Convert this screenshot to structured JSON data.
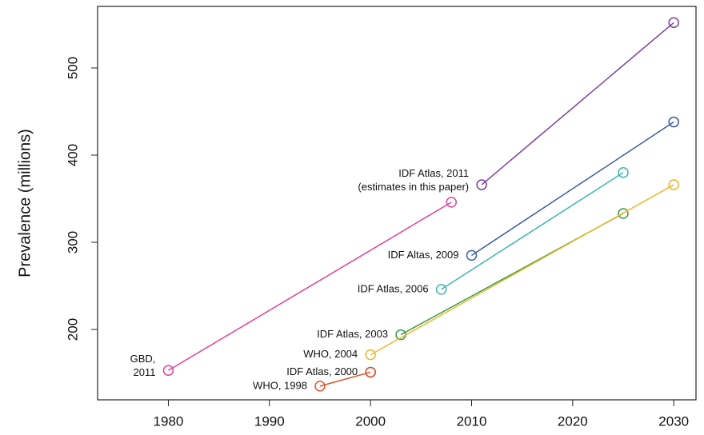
{
  "chart_data": {
    "type": "line",
    "y_label": "Prevalence (millions)",
    "xlim": [
      1973,
      2032.2
    ],
    "ylim": [
      119.3,
      570.6
    ],
    "xticks": [
      1980,
      1990,
      2000,
      2010,
      2020,
      2030
    ],
    "yticks": [
      200,
      300,
      400,
      500
    ],
    "grid": false,
    "series": [
      {
        "label": [
          "GBD,",
          "2011"
        ],
        "color": "#e0409b",
        "x": [
          1980,
          2008
        ],
        "values": [
          153,
          346
        ]
      },
      {
        "label": [
          "IDF Atlas, 2011",
          "(estimates in this paper)"
        ],
        "color": "#7b3fa0",
        "x": [
          2011,
          2030
        ],
        "values": [
          366,
          552
        ]
      },
      {
        "label": [
          "IDF Altas, 2009"
        ],
        "color": "#3c5aa8",
        "x": [
          2010,
          2030
        ],
        "values": [
          285,
          438
        ]
      },
      {
        "label": [
          "IDF Atlas, 2006"
        ],
        "color": "#3bb5b0",
        "x": [
          2007,
          2025
        ],
        "values": [
          246,
          380
        ]
      },
      {
        "label": [
          "IDF Atlas, 2003"
        ],
        "color": "#3a9d48",
        "x": [
          2003,
          2025
        ],
        "values": [
          194,
          333
        ]
      },
      {
        "label": [
          "WHO, 2004"
        ],
        "color": "#f0b429",
        "x": [
          2000,
          2030
        ],
        "values": [
          171,
          366
        ]
      },
      {
        "label": [
          "IDF Atlas, 2000"
        ],
        "color": "#6f8a2c",
        "x": [
          2000
        ],
        "values": [
          151
        ]
      },
      {
        "label": [
          "WHO, 1998"
        ],
        "color": "#e0502b",
        "x": [
          1995,
          2000
        ],
        "values": [
          135,
          151
        ]
      }
    ]
  }
}
